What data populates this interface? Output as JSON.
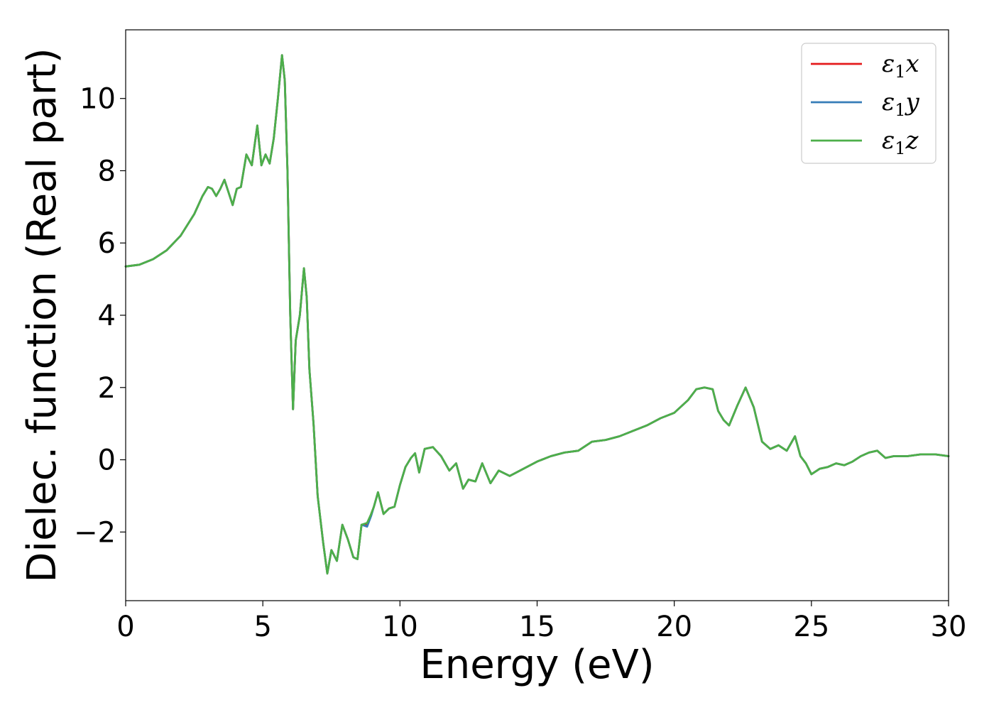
{
  "chart_data": {
    "type": "line",
    "title": "",
    "xlabel": "Energy (eV)",
    "ylabel": "Dielec. function (Real part)",
    "xlim": [
      0,
      30
    ],
    "ylim": [
      -3.9,
      11.9
    ],
    "xticks": [
      0,
      5,
      10,
      15,
      20,
      25,
      30
    ],
    "xtick_labels": [
      "0",
      "5",
      "10",
      "15",
      "20",
      "25",
      "30"
    ],
    "yticks": [
      -2,
      0,
      2,
      4,
      6,
      8,
      10
    ],
    "ytick_labels": [
      "−2",
      "0",
      "2",
      "4",
      "6",
      "8",
      "10"
    ],
    "grid": false,
    "legend_position": "top-right",
    "series": [
      {
        "name": "ε1x",
        "legend_symbol": "ε",
        "legend_sub": "1",
        "legend_var": "x",
        "color": "#e41a1c",
        "x": [
          0.0,
          0.5,
          1.0,
          1.5,
          2.0,
          2.5,
          2.8,
          3.0,
          3.15,
          3.3,
          3.45,
          3.6,
          3.75,
          3.9,
          4.05,
          4.2,
          4.4,
          4.6,
          4.8,
          4.95,
          5.1,
          5.25,
          5.4,
          5.55,
          5.7,
          5.8,
          5.9,
          6.0,
          6.1,
          6.2,
          6.35,
          6.5,
          6.6,
          6.7,
          6.85,
          7.0,
          7.2,
          7.35,
          7.5,
          7.7,
          7.9,
          8.1,
          8.3,
          8.45,
          8.6,
          8.8,
          8.95,
          9.05,
          9.2,
          9.4,
          9.6,
          9.8,
          10.0,
          10.2,
          10.4,
          10.55,
          10.7,
          10.9,
          11.2,
          11.5,
          11.8,
          12.05,
          12.3,
          12.5,
          12.75,
          13.0,
          13.3,
          13.6,
          14.0,
          14.5,
          15.0,
          15.5,
          16.0,
          16.5,
          17.0,
          17.5,
          18.0,
          18.5,
          19.0,
          19.5,
          20.0,
          20.5,
          20.8,
          21.1,
          21.4,
          21.6,
          21.8,
          22.0,
          22.3,
          22.6,
          22.9,
          23.2,
          23.5,
          23.8,
          24.1,
          24.4,
          24.6,
          24.8,
          25.0,
          25.3,
          25.6,
          25.9,
          26.2,
          26.5,
          26.8,
          27.1,
          27.4,
          27.7,
          28.0,
          28.5,
          29.0,
          29.5,
          30.0
        ],
        "y": [
          5.35,
          5.4,
          5.55,
          5.8,
          6.2,
          6.8,
          7.3,
          7.55,
          7.5,
          7.3,
          7.5,
          7.75,
          7.4,
          7.05,
          7.5,
          7.55,
          8.45,
          8.15,
          9.25,
          8.15,
          8.45,
          8.2,
          8.9,
          10.0,
          11.2,
          10.5,
          8.0,
          4.0,
          1.4,
          3.3,
          4.0,
          5.3,
          4.5,
          2.5,
          1.0,
          -1.0,
          -2.3,
          -3.15,
          -2.5,
          -2.8,
          -1.8,
          -2.2,
          -2.7,
          -2.75,
          -1.8,
          -1.8,
          -1.5,
          -1.3,
          -0.9,
          -1.5,
          -1.35,
          -1.3,
          -0.7,
          -0.2,
          0.05,
          0.18,
          -0.35,
          0.3,
          0.35,
          0.1,
          -0.3,
          -0.1,
          -0.8,
          -0.55,
          -0.6,
          -0.1,
          -0.65,
          -0.3,
          -0.45,
          -0.25,
          -0.05,
          0.1,
          0.2,
          0.25,
          0.5,
          0.55,
          0.65,
          0.8,
          0.95,
          1.15,
          1.3,
          1.65,
          1.95,
          2.0,
          1.95,
          1.35,
          1.1,
          0.95,
          1.5,
          2.0,
          1.45,
          0.5,
          0.3,
          0.4,
          0.25,
          0.65,
          0.1,
          -0.1,
          -0.4,
          -0.25,
          -0.2,
          -0.1,
          -0.15,
          -0.05,
          0.1,
          0.2,
          0.25,
          0.05,
          0.1,
          0.1,
          0.15,
          0.15,
          0.1
        ]
      },
      {
        "name": "ε1y",
        "legend_symbol": "ε",
        "legend_sub": "1",
        "legend_var": "y",
        "color": "#377eb8",
        "x": [
          0.0,
          0.5,
          1.0,
          1.5,
          2.0,
          2.5,
          2.8,
          3.0,
          3.15,
          3.3,
          3.45,
          3.6,
          3.75,
          3.9,
          4.05,
          4.2,
          4.4,
          4.6,
          4.8,
          4.95,
          5.1,
          5.25,
          5.4,
          5.55,
          5.7,
          5.8,
          5.9,
          6.0,
          6.1,
          6.2,
          6.35,
          6.5,
          6.6,
          6.7,
          6.85,
          7.0,
          7.2,
          7.35,
          7.5,
          7.7,
          7.9,
          8.1,
          8.3,
          8.45,
          8.6,
          8.8,
          8.95,
          9.05,
          9.2,
          9.4,
          9.6,
          9.8,
          10.0,
          10.2,
          10.4,
          10.55,
          10.7,
          10.9,
          11.2,
          11.5,
          11.8,
          12.05,
          12.3,
          12.5,
          12.75,
          13.0,
          13.3,
          13.6,
          14.0,
          14.5,
          15.0,
          15.5,
          16.0,
          16.5,
          17.0,
          17.5,
          18.0,
          18.5,
          19.0,
          19.5,
          20.0,
          20.5,
          20.8,
          21.1,
          21.4,
          21.6,
          21.8,
          22.0,
          22.3,
          22.6,
          22.9,
          23.2,
          23.5,
          23.8,
          24.1,
          24.4,
          24.6,
          24.8,
          25.0,
          25.3,
          25.6,
          25.9,
          26.2,
          26.5,
          26.8,
          27.1,
          27.4,
          27.7,
          28.0,
          28.5,
          29.0,
          29.5,
          30.0
        ],
        "y": [
          5.35,
          5.4,
          5.55,
          5.8,
          6.2,
          6.8,
          7.3,
          7.55,
          7.5,
          7.3,
          7.5,
          7.75,
          7.4,
          7.05,
          7.5,
          7.55,
          8.45,
          8.15,
          9.25,
          8.15,
          8.45,
          8.2,
          8.9,
          10.0,
          11.2,
          10.5,
          8.0,
          4.0,
          1.4,
          3.3,
          4.0,
          5.3,
          4.5,
          2.5,
          1.0,
          -1.0,
          -2.3,
          -3.15,
          -2.5,
          -2.8,
          -1.8,
          -2.2,
          -2.7,
          -2.75,
          -1.8,
          -1.85,
          -1.55,
          -1.3,
          -0.9,
          -1.5,
          -1.35,
          -1.3,
          -0.7,
          -0.2,
          0.05,
          0.18,
          -0.35,
          0.3,
          0.35,
          0.1,
          -0.3,
          -0.1,
          -0.8,
          -0.55,
          -0.6,
          -0.1,
          -0.65,
          -0.3,
          -0.45,
          -0.25,
          -0.05,
          0.1,
          0.2,
          0.25,
          0.5,
          0.55,
          0.65,
          0.8,
          0.95,
          1.15,
          1.3,
          1.65,
          1.95,
          2.0,
          1.95,
          1.35,
          1.1,
          0.95,
          1.5,
          2.0,
          1.45,
          0.5,
          0.3,
          0.4,
          0.25,
          0.65,
          0.1,
          -0.1,
          -0.4,
          -0.25,
          -0.2,
          -0.1,
          -0.15,
          -0.05,
          0.1,
          0.2,
          0.25,
          0.05,
          0.1,
          0.1,
          0.15,
          0.15,
          0.1
        ]
      },
      {
        "name": "ε1z",
        "legend_symbol": "ε",
        "legend_sub": "1",
        "legend_var": "z",
        "color": "#4daf4a",
        "x": [
          0.0,
          0.5,
          1.0,
          1.5,
          2.0,
          2.5,
          2.8,
          3.0,
          3.15,
          3.3,
          3.45,
          3.6,
          3.75,
          3.9,
          4.05,
          4.2,
          4.4,
          4.6,
          4.8,
          4.95,
          5.1,
          5.25,
          5.4,
          5.55,
          5.7,
          5.8,
          5.9,
          6.0,
          6.1,
          6.2,
          6.35,
          6.5,
          6.6,
          6.7,
          6.85,
          7.0,
          7.2,
          7.35,
          7.5,
          7.7,
          7.9,
          8.1,
          8.3,
          8.45,
          8.6,
          8.8,
          8.95,
          9.05,
          9.2,
          9.4,
          9.6,
          9.8,
          10.0,
          10.2,
          10.4,
          10.55,
          10.7,
          10.9,
          11.2,
          11.5,
          11.8,
          12.05,
          12.3,
          12.5,
          12.75,
          13.0,
          13.3,
          13.6,
          14.0,
          14.5,
          15.0,
          15.5,
          16.0,
          16.5,
          17.0,
          17.5,
          18.0,
          18.5,
          19.0,
          19.5,
          20.0,
          20.5,
          20.8,
          21.1,
          21.4,
          21.6,
          21.8,
          22.0,
          22.3,
          22.6,
          22.9,
          23.2,
          23.5,
          23.8,
          24.1,
          24.4,
          24.6,
          24.8,
          25.0,
          25.3,
          25.6,
          25.9,
          26.2,
          26.5,
          26.8,
          27.1,
          27.4,
          27.7,
          28.0,
          28.5,
          29.0,
          29.5,
          30.0
        ],
        "y": [
          5.35,
          5.4,
          5.55,
          5.8,
          6.2,
          6.8,
          7.3,
          7.55,
          7.5,
          7.3,
          7.5,
          7.75,
          7.4,
          7.05,
          7.5,
          7.55,
          8.45,
          8.15,
          9.25,
          8.15,
          8.45,
          8.2,
          8.9,
          10.0,
          11.2,
          10.5,
          8.0,
          4.0,
          1.4,
          3.3,
          4.0,
          5.3,
          4.5,
          2.5,
          1.0,
          -1.0,
          -2.3,
          -3.15,
          -2.5,
          -2.8,
          -1.8,
          -2.2,
          -2.7,
          -2.75,
          -1.8,
          -1.75,
          -1.5,
          -1.3,
          -0.9,
          -1.5,
          -1.35,
          -1.3,
          -0.7,
          -0.2,
          0.05,
          0.18,
          -0.35,
          0.3,
          0.35,
          0.1,
          -0.3,
          -0.1,
          -0.8,
          -0.55,
          -0.6,
          -0.1,
          -0.65,
          -0.3,
          -0.45,
          -0.25,
          -0.05,
          0.1,
          0.2,
          0.25,
          0.5,
          0.55,
          0.65,
          0.8,
          0.95,
          1.15,
          1.3,
          1.65,
          1.95,
          2.0,
          1.95,
          1.35,
          1.1,
          0.95,
          1.5,
          2.0,
          1.45,
          0.5,
          0.3,
          0.4,
          0.25,
          0.65,
          0.1,
          -0.1,
          -0.4,
          -0.25,
          -0.2,
          -0.1,
          -0.15,
          -0.05,
          0.1,
          0.2,
          0.25,
          0.05,
          0.1,
          0.1,
          0.15,
          0.15,
          0.1
        ]
      }
    ]
  }
}
